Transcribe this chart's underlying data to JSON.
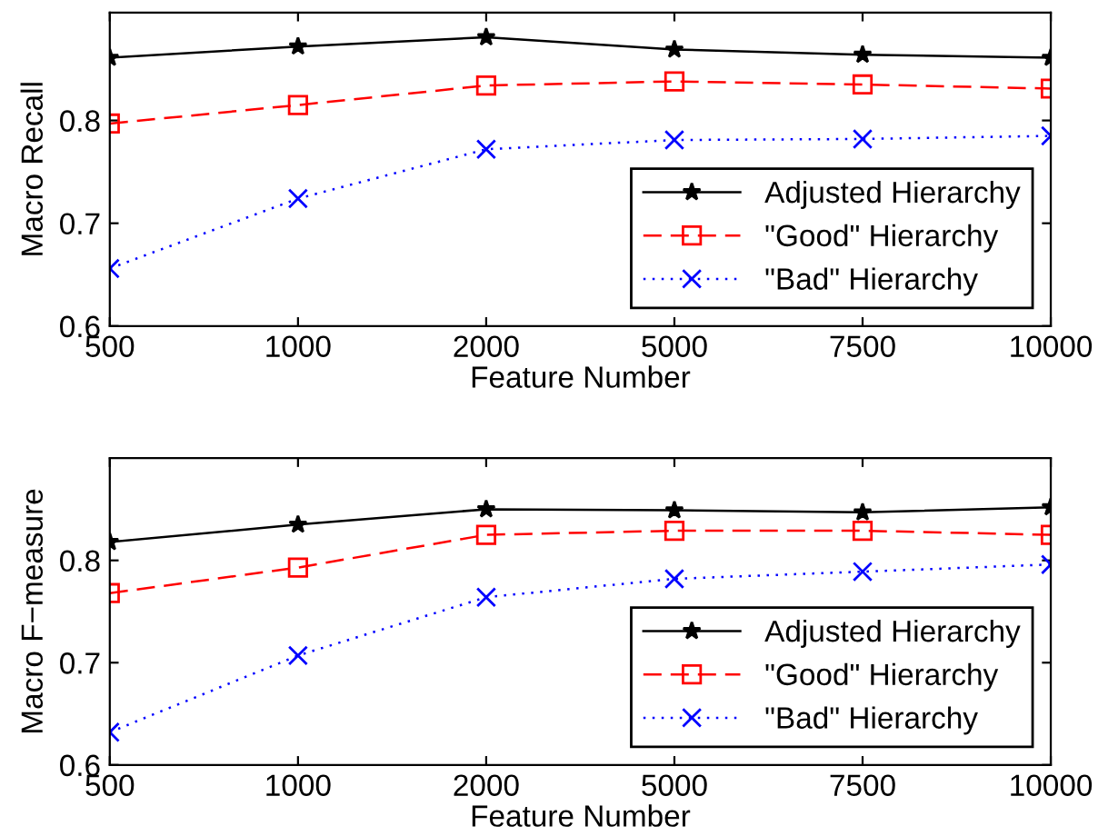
{
  "chart_data": [
    {
      "type": "line",
      "xlabel": "Feature Number",
      "ylabel": "Macro Recall",
      "categories": [
        "500",
        "1000",
        "2000",
        "5000",
        "7500",
        "10000"
      ],
      "series": [
        {
          "name": "Adjusted Hierarchy",
          "color": "#000000",
          "marker": "star",
          "line_style": "solid",
          "values": [
            0.861,
            0.872,
            0.881,
            0.869,
            0.864,
            0.861
          ]
        },
        {
          "name": "\"Good\" Hierarchy",
          "color": "#ff0000",
          "marker": "square",
          "line_style": "dashed",
          "values": [
            0.797,
            0.815,
            0.834,
            0.838,
            0.835,
            0.831
          ]
        },
        {
          "name": "\"Bad\" Hierarchy",
          "color": "#0000ff",
          "marker": "cross",
          "line_style": "dotted",
          "values": [
            0.656,
            0.724,
            0.772,
            0.781,
            0.782,
            0.785
          ]
        }
      ],
      "ylim": [
        0.6,
        0.905
      ],
      "yticks": [
        {
          "value": 0.6,
          "label": "0.6"
        },
        {
          "value": 0.7,
          "label": "0.7"
        },
        {
          "value": 0.8,
          "label": "0.8"
        }
      ],
      "grid": false,
      "legend": "bottom right"
    },
    {
      "type": "line",
      "xlabel": "Feature Number",
      "ylabel": "Macro F−measure",
      "categories": [
        "500",
        "1000",
        "2000",
        "5000",
        "7500",
        "10000"
      ],
      "series": [
        {
          "name": "Adjusted Hierarchy",
          "color": "#000000",
          "marker": "star",
          "line_style": "solid",
          "values": [
            0.818,
            0.835,
            0.85,
            0.849,
            0.847,
            0.852
          ]
        },
        {
          "name": "\"Good\" Hierarchy",
          "color": "#ff0000",
          "marker": "square",
          "line_style": "dashed",
          "values": [
            0.768,
            0.793,
            0.825,
            0.829,
            0.829,
            0.825
          ]
        },
        {
          "name": "\"Bad\" Hierarchy",
          "color": "#0000ff",
          "marker": "cross",
          "line_style": "dotted",
          "values": [
            0.632,
            0.707,
            0.764,
            0.782,
            0.789,
            0.796
          ]
        }
      ],
      "ylim": [
        0.6,
        0.9
      ],
      "yticks": [
        {
          "value": 0.6,
          "label": "0.6"
        },
        {
          "value": 0.7,
          "label": "0.7"
        },
        {
          "value": 0.8,
          "label": "0.8"
        }
      ],
      "grid": false,
      "legend": "bottom right"
    }
  ]
}
